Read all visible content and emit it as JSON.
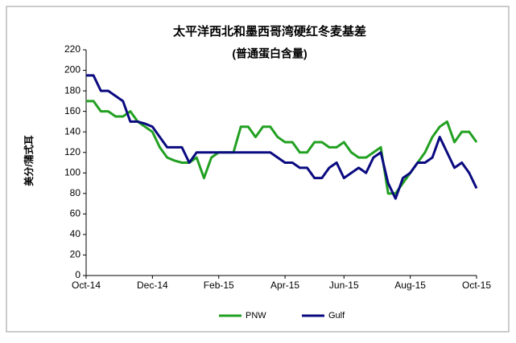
{
  "chart_data": {
    "type": "line",
    "title": "太平洋西北和墨西哥湾硬红冬麦基差",
    "subtitle": "(普通蛋白含量)",
    "y_label": "美分/蒲式耳",
    "categories": [
      "Oct-14",
      null,
      null,
      null,
      null,
      null,
      null,
      null,
      null,
      "Dec-14",
      null,
      null,
      null,
      null,
      null,
      null,
      null,
      null,
      "Feb-15",
      null,
      null,
      null,
      null,
      null,
      null,
      null,
      null,
      "Apr-15",
      null,
      null,
      null,
      null,
      null,
      null,
      null,
      "Jun-15",
      null,
      null,
      null,
      null,
      null,
      null,
      null,
      null,
      "Aug-15",
      null,
      null,
      null,
      null,
      null,
      null,
      null,
      null,
      "Oct-15"
    ],
    "series": [
      {
        "name": "PNW",
        "color": "#22a022",
        "values": [
          170,
          170,
          160,
          160,
          155,
          155,
          160,
          150,
          145,
          140,
          125,
          115,
          112,
          110,
          110,
          115,
          95,
          115,
          120,
          120,
          120,
          145,
          145,
          135,
          145,
          145,
          135,
          130,
          130,
          120,
          120,
          130,
          130,
          125,
          125,
          130,
          120,
          115,
          115,
          120,
          125,
          80,
          80,
          90,
          100,
          110,
          120,
          135,
          145,
          150,
          130,
          140,
          140,
          130
        ]
      },
      {
        "name": "Gulf",
        "color": "#0a0a80",
        "values": [
          195,
          195,
          180,
          180,
          175,
          170,
          150,
          150,
          148,
          145,
          135,
          125,
          125,
          125,
          110,
          120,
          120,
          120,
          120,
          120,
          120,
          120,
          120,
          120,
          120,
          120,
          115,
          110,
          110,
          105,
          105,
          95,
          95,
          105,
          110,
          95,
          100,
          105,
          100,
          115,
          120,
          90,
          75,
          95,
          100,
          110,
          110,
          115,
          135,
          120,
          105,
          110,
          100,
          85
        ]
      }
    ],
    "ylim": [
      0,
      220
    ],
    "yticks": [
      0,
      20,
      40,
      60,
      80,
      100,
      120,
      140,
      160,
      180,
      200,
      220
    ],
    "legend": "bottom"
  }
}
